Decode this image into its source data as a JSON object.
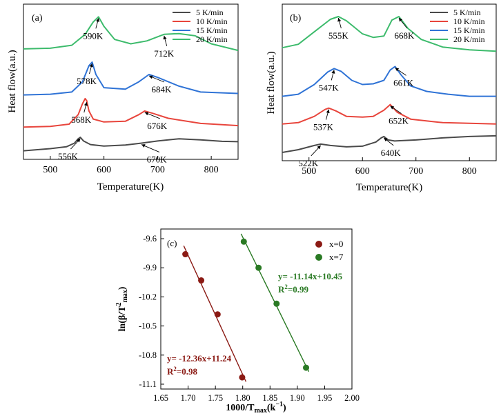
{
  "chart_data": [
    {
      "type": "line",
      "panel_label": "(a)",
      "xlabel": "Temperature(K)",
      "ylabel": "Heat flow(a.u.)",
      "xlim": [
        450,
        850
      ],
      "xticks": [
        500,
        600,
        700,
        800
      ],
      "legend_position": "top-right",
      "grid": false,
      "series": [
        {
          "name": "5 K/min",
          "color": "#4a4a4a",
          "x": [
            450,
            500,
            530,
            545,
            552,
            556,
            562,
            575,
            600,
            640,
            670,
            700,
            740,
            780,
            820,
            850
          ],
          "y": [
            0.55,
            0.85,
            1.1,
            1.6,
            2.2,
            2.4,
            1.9,
            1.4,
            1.2,
            1.35,
            1.6,
            1.9,
            2.2,
            2.05,
            1.85,
            1.8
          ]
        },
        {
          "name": "10 K/min",
          "color": "#e8453c",
          "x": [
            450,
            500,
            535,
            552,
            560,
            565,
            568,
            572,
            580,
            600,
            640,
            665,
            676,
            690,
            720,
            780,
            850
          ],
          "y": [
            3.8,
            3.9,
            4.2,
            5.5,
            7.0,
            7.7,
            7.4,
            6.0,
            4.9,
            4.5,
            4.6,
            5.5,
            6.0,
            5.7,
            5.0,
            4.3,
            4.0
          ]
        },
        {
          "name": "15 K/min",
          "color": "#2f73d6",
          "x": [
            450,
            500,
            540,
            560,
            572,
            578,
            585,
            600,
            640,
            665,
            684,
            700,
            740,
            780,
            850
          ],
          "y": [
            8.2,
            8.3,
            8.6,
            10.0,
            12.2,
            12.7,
            11.0,
            9.2,
            9.0,
            10.0,
            11.0,
            10.6,
            9.4,
            8.6,
            8.4
          ]
        },
        {
          "name": "20 K/min",
          "color": "#3dbb6c",
          "x": [
            450,
            500,
            540,
            565,
            580,
            590,
            600,
            620,
            650,
            680,
            712,
            740,
            770,
            800,
            850
          ],
          "y": [
            14.5,
            14.6,
            15.0,
            16.5,
            18.2,
            18.9,
            17.6,
            15.8,
            15.2,
            15.6,
            16.5,
            16.6,
            16.3,
            15.2,
            14.3
          ]
        }
      ],
      "annotations": [
        {
          "text": "556K",
          "x": 556,
          "y": 2.4
        },
        {
          "text": "670K",
          "x": 670,
          "y": 1.6
        },
        {
          "text": "568K",
          "x": 568,
          "y": 7.4
        },
        {
          "text": "676K",
          "x": 676,
          "y": 6.0
        },
        {
          "text": "578K",
          "x": 578,
          "y": 12.7
        },
        {
          "text": "684K",
          "x": 684,
          "y": 11.0
        },
        {
          "text": "590K",
          "x": 590,
          "y": 18.9
        },
        {
          "text": "712K",
          "x": 712,
          "y": 16.5
        }
      ]
    },
    {
      "type": "line",
      "panel_label": "(b)",
      "xlabel": "Temperature(K)",
      "ylabel": "Heat flow(a.u.)",
      "xlim": [
        450,
        850
      ],
      "xticks": [
        500,
        600,
        700,
        800
      ],
      "legend_position": "top-right",
      "grid": false,
      "series": [
        {
          "name": "5 K/min",
          "color": "#4a4a4a",
          "x": [
            450,
            480,
            510,
            522,
            540,
            570,
            600,
            625,
            635,
            640,
            648,
            660,
            700,
            750,
            800,
            850
          ],
          "y": [
            0.4,
            0.8,
            1.4,
            1.6,
            1.4,
            1.2,
            1.3,
            1.9,
            2.5,
            2.7,
            2.2,
            2.05,
            2.2,
            2.5,
            2.7,
            2.8
          ]
        },
        {
          "name": "10 K/min",
          "color": "#e8453c",
          "x": [
            450,
            480,
            510,
            530,
            537,
            550,
            570,
            600,
            620,
            640,
            652,
            665,
            690,
            750,
            800,
            850
          ],
          "y": [
            4.5,
            4.7,
            5.6,
            6.6,
            6.8,
            6.4,
            5.6,
            5.5,
            5.6,
            6.5,
            7.3,
            6.2,
            5.2,
            4.7,
            4.6,
            4.5
          ]
        },
        {
          "name": "15 K/min",
          "color": "#2f73d6",
          "x": [
            450,
            480,
            510,
            535,
            547,
            560,
            580,
            600,
            620,
            640,
            652,
            661,
            672,
            690,
            720,
            760,
            800,
            850
          ],
          "y": [
            8.5,
            8.8,
            10.2,
            12.0,
            12.5,
            12.1,
            10.8,
            10.2,
            10.3,
            10.8,
            12.3,
            12.8,
            11.6,
            10.0,
            9.2,
            8.8,
            8.5,
            8.5
          ]
        },
        {
          "name": "20 K/min",
          "color": "#3dbb6c",
          "x": [
            450,
            480,
            510,
            540,
            555,
            570,
            600,
            620,
            640,
            655,
            668,
            685,
            710,
            750,
            800,
            850
          ],
          "y": [
            15.5,
            16.0,
            17.8,
            19.6,
            20.0,
            19.4,
            17.5,
            17.0,
            17.2,
            19.5,
            20.0,
            18.3,
            16.7,
            15.6,
            15.2,
            15.0
          ]
        }
      ],
      "annotations": [
        {
          "text": "522K",
          "x": 522,
          "y": 1.6
        },
        {
          "text": "640K",
          "x": 640,
          "y": 2.7
        },
        {
          "text": "537K",
          "x": 537,
          "y": 6.8
        },
        {
          "text": "652K",
          "x": 652,
          "y": 7.3
        },
        {
          "text": "547K",
          "x": 547,
          "y": 12.5
        },
        {
          "text": "661K",
          "x": 661,
          "y": 12.8
        },
        {
          "text": "555K",
          "x": 555,
          "y": 20.0
        },
        {
          "text": "668K",
          "x": 668,
          "y": 20.0
        }
      ]
    },
    {
      "type": "scatter",
      "panel_label": "(c)",
      "xlabel": "1000/T",
      "xlabel_sub": "max",
      "xlabel_unit": "(k",
      "xlabel_unit_sup": "−1",
      "xlabel_unit_close": ")",
      "ylabel_prefix": "ln(β/T",
      "ylabel_sup": "2",
      "ylabel_sub": "max",
      "ylabel_close": ")",
      "xlim": [
        1.65,
        2.0
      ],
      "ylim": [
        -11.15,
        -9.5
      ],
      "xticks": [
        "1.65",
        "1.70",
        "1.75",
        "1.80",
        "1.85",
        "1.90",
        "1.95",
        "2.00"
      ],
      "yticks": [
        "-9.6",
        "-9.9",
        "-10.2",
        "-10.5",
        "-10.8",
        "-11.1"
      ],
      "legend_position": "top-right",
      "grid": false,
      "series": [
        {
          "name": "x=0",
          "color": "#8b1a14",
          "x": [
            1.695,
            1.724,
            1.754,
            1.799
          ],
          "y": [
            -9.76,
            -10.03,
            -10.38,
            -11.03
          ],
          "fit": {
            "slope": -12.36,
            "intercept": 11.24,
            "x_range": [
              1.692,
              1.806
            ]
          },
          "equation": "y= -12.36x+11.24",
          "r2_prefix": "R",
          "r2_sup": "2",
          "r2_value": "=0.98"
        },
        {
          "name": "x=7",
          "color": "#2a7a24",
          "x": [
            1.802,
            1.829,
            1.862,
            1.916
          ],
          "y": [
            -9.63,
            -9.9,
            -10.27,
            -10.93
          ],
          "fit": {
            "slope": -11.14,
            "intercept": 10.45,
            "x_range": [
              1.797,
              1.921
            ]
          },
          "equation": "y= -11.14x+10.45",
          "r2_prefix": "R",
          "r2_sup": "2",
          "r2_value": "=0.99"
        }
      ]
    }
  ]
}
